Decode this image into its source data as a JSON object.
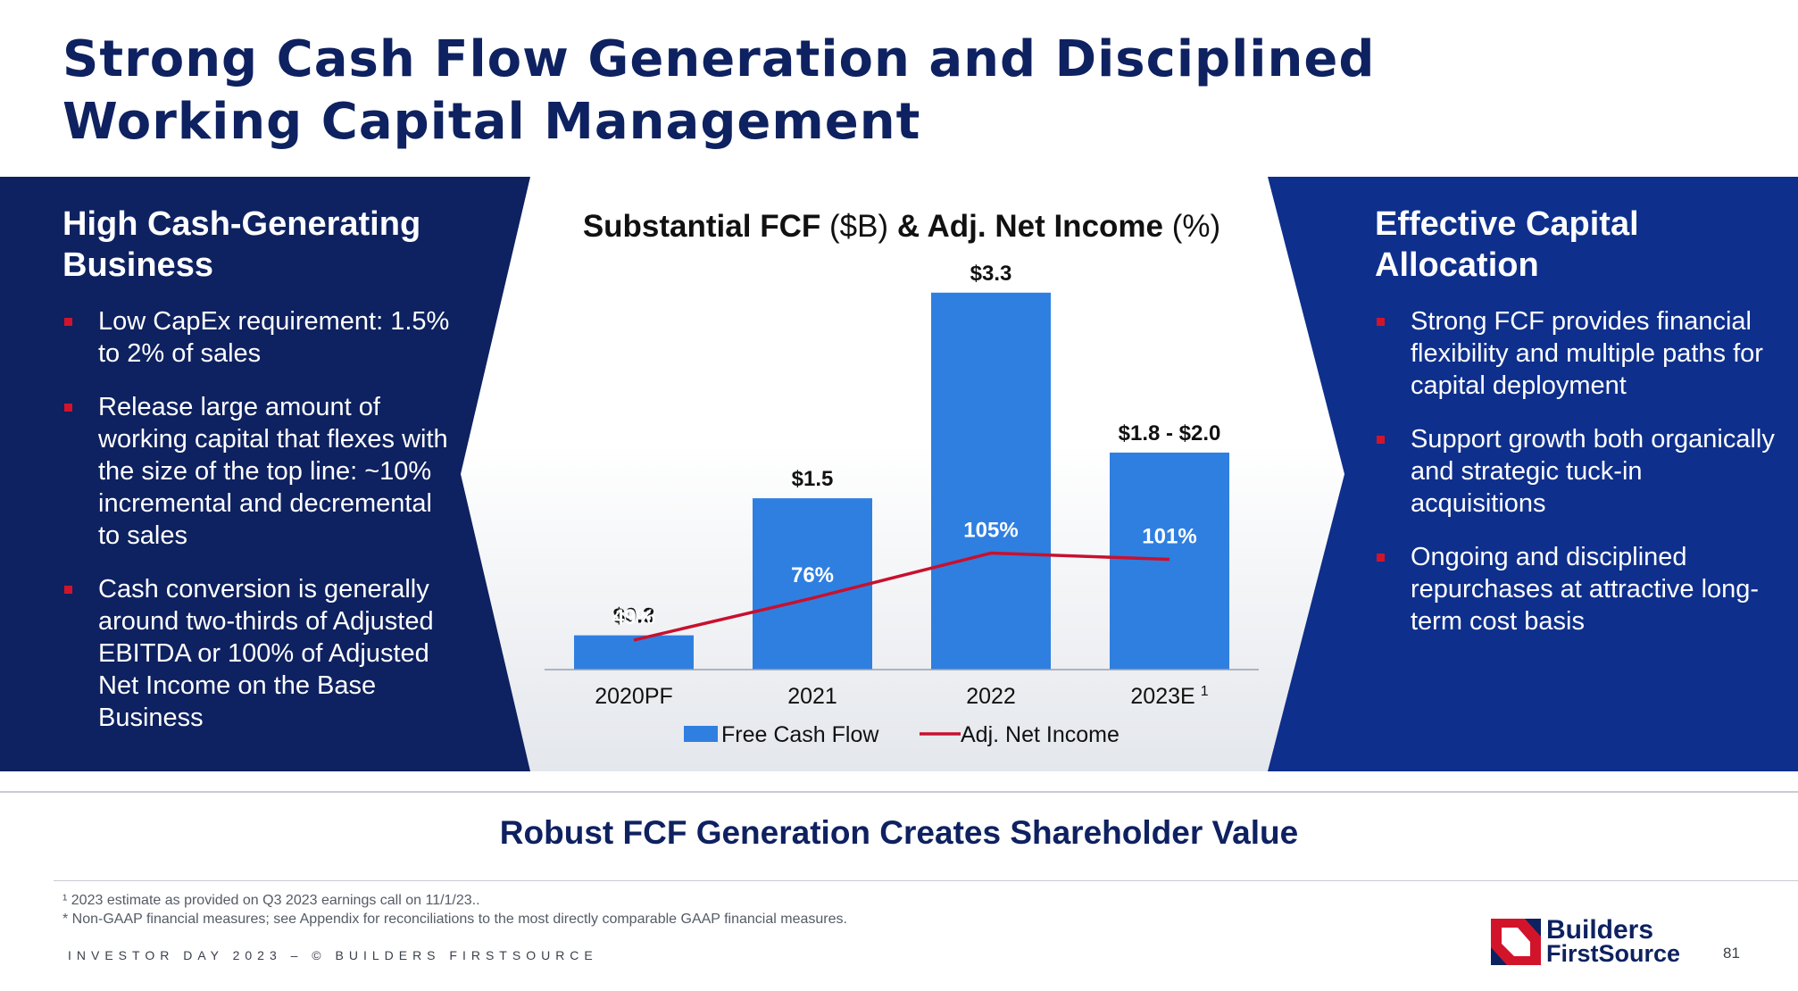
{
  "slide": {
    "title": "Strong Cash Flow Generation and Disciplined\nWorking Capital Management",
    "robust_message": "Robust FCF Generation Creates Shareholder Value",
    "footnote_1": "¹ 2023 estimate as provided on Q3 2023 earnings call on 11/1/23..",
    "footnote_2": "* Non-GAAP financial measures; see Appendix for reconciliations to the most directly comparable GAAP financial measures.",
    "footer_text": "INVESTOR DAY 2023 – © BUILDERS FIRSTSOURCE",
    "page_number": "81"
  },
  "left_panel": {
    "heading": "High Cash-Generating Business",
    "bullets": [
      "Low CapEx requirement: 1.5% to 2% of sales",
      "Release large amount of working capital that flexes with the size of the top line: ~10% incremental and decremental to sales",
      "Cash conversion is generally around two-thirds of Adjusted EBITDA or 100% of Adjusted Net Income on the Base Business"
    ]
  },
  "right_panel": {
    "heading": "Effective Capital Allocation",
    "bullets": [
      "Strong FCF provides financial flexibility and multiple paths for capital deployment",
      "Support growth both organically and strategic tuck-in acquisitions",
      "Ongoing and disciplined repurchases at attractive long-term cost basis"
    ]
  },
  "logo": {
    "line1": "Builders",
    "line2": "FirstSource",
    "colors": {
      "red": "#d2142b",
      "navy": "#0e2160"
    }
  },
  "colors": {
    "navy": "#0e2160",
    "right_panel": "#0e2f8c",
    "bar": "#2f7fe0",
    "line": "#c8102e",
    "bullet": "#d2142b"
  },
  "chart_data": {
    "type": "bar",
    "title_parts": [
      {
        "text": "Substantial FCF",
        "bold": true
      },
      {
        "text": " ($B) ",
        "bold": false
      },
      {
        "text": "& Adj. Net Income",
        "bold": true
      },
      {
        "text": " (%)",
        "bold": false
      }
    ],
    "categories": [
      "2020PF",
      "2021",
      "2022",
      "2023E"
    ],
    "category_superscripts": [
      "",
      "",
      "",
      "1"
    ],
    "series": [
      {
        "name": "Free Cash Flow",
        "type": "bar",
        "values": [
          0.3,
          1.5,
          3.3,
          1.9
        ],
        "labels": [
          "$0.3",
          "$1.5",
          "$3.3",
          "$1.8 - $2.0"
        ]
      },
      {
        "name": "Adj. Net Income",
        "type": "line",
        "values": [
          49,
          76,
          105,
          101
        ],
        "labels": [
          "49%",
          "76%",
          "105%",
          "101%"
        ]
      }
    ],
    "ylim": [
      0,
      3.4
    ],
    "line_ylim": [
      30,
      280
    ],
    "legend_position": "bottom",
    "grid": false
  }
}
